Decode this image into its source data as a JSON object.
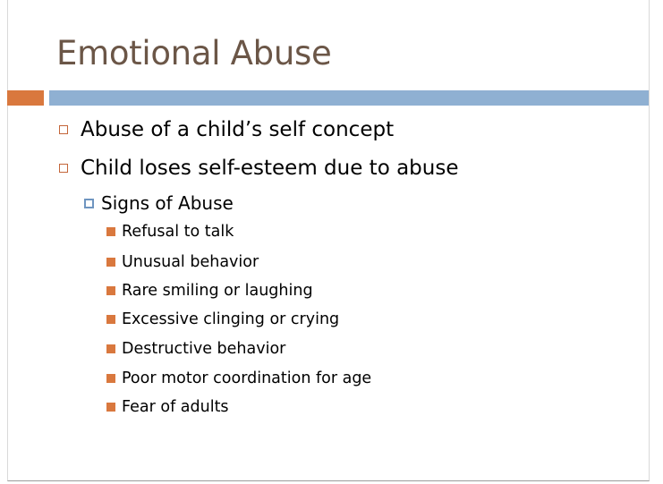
{
  "slide": {
    "title": "Emotional Abuse",
    "bullets": [
      {
        "text": "Abuse of a child’s self concept"
      },
      {
        "text": "Child loses self-esteem due to abuse"
      }
    ],
    "sub_bullet": {
      "text": "Signs of Abuse"
    },
    "signs": [
      "Refusal to talk",
      "Unusual behavior",
      "Rare smiling or laughing",
      "Excessive clinging or crying",
      "Destructive behavior",
      "Poor motor coordination for age",
      "Fear of adults"
    ]
  },
  "colors": {
    "title": "#6b5647",
    "accent_orange": "#d9783e",
    "accent_blue": "#8fb0d2",
    "sub_bullet_marker": "#6f95c0"
  },
  "icons": {
    "level1_marker": "hollow-square",
    "level2_marker": "hollow-square-blue",
    "level3_marker": "filled-square-orange"
  }
}
